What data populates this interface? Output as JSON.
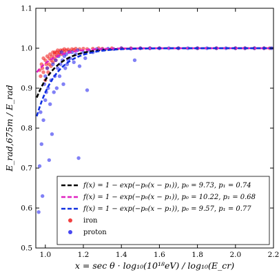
{
  "chart_data": {
    "type": "scatter",
    "xlabel": "x = sec θ · log₁₀(10¹⁸eV) / log₁₀(E_cr)",
    "ylabel": "E_rad,675m / E_rad",
    "xlim": [
      0.95,
      2.2
    ],
    "ylim": [
      0.5,
      1.1
    ],
    "x_ticks": [
      "1.0",
      "1.2",
      "1.4",
      "1.6",
      "1.8",
      "2.0",
      "2.2"
    ],
    "y_ticks": [
      "0.5",
      "0.6",
      "0.7",
      "0.8",
      "0.9",
      "1.0",
      "1.1"
    ],
    "grid": false,
    "legend_position": "lower-right",
    "fit_lines": [
      {
        "label": "f(x) = 1 − exp(−p₀(x − p₁)), p₀ = 9.73, p₁ = 0.74",
        "p0": 9.73,
        "p1": 0.74,
        "color": "#000000"
      },
      {
        "label": "f(x) = 1 − exp(−p₀(x − p₁)), p₀ = 10.22, p₁ = 0.68",
        "p0": 10.22,
        "p1": 0.68,
        "color": "#e020c0"
      },
      {
        "label": "f(x) = 1 − exp(−p₀(x − p₁)), p₀ = 9.57, p₁ = 0.77",
        "p0": 9.57,
        "p1": 0.77,
        "color": "#1030e0"
      }
    ],
    "series": [
      {
        "name": "iron",
        "color": "#ee1111",
        "points": [
          [
            0.97,
            0.945
          ],
          [
            0.975,
            0.93
          ],
          [
            0.98,
            0.96
          ],
          [
            0.985,
            0.95
          ],
          [
            0.99,
            0.975
          ],
          [
            0.99,
            0.94
          ],
          [
            1.0,
            0.97
          ],
          [
            1.0,
            0.92
          ],
          [
            1.005,
            0.96
          ],
          [
            1.01,
            0.98
          ],
          [
            1.01,
            0.95
          ],
          [
            1.015,
            0.94
          ],
          [
            1.02,
            0.975
          ],
          [
            1.02,
            0.96
          ],
          [
            1.025,
            0.985
          ],
          [
            1.03,
            0.97
          ],
          [
            1.03,
            0.955
          ],
          [
            1.035,
            0.98
          ],
          [
            1.04,
            0.99
          ],
          [
            1.04,
            0.965
          ],
          [
            1.045,
            0.975
          ],
          [
            1.05,
            0.985
          ],
          [
            1.05,
            0.99
          ],
          [
            1.055,
            0.97
          ],
          [
            1.06,
            0.99
          ],
          [
            1.06,
            0.98
          ],
          [
            1.065,
            0.995
          ],
          [
            1.07,
            0.985
          ],
          [
            1.075,
            0.99
          ],
          [
            1.08,
            0.995
          ],
          [
            1.085,
            0.985
          ],
          [
            1.09,
            0.995
          ],
          [
            1.1,
            0.99
          ],
          [
            1.1,
            0.998
          ],
          [
            1.11,
            0.995
          ],
          [
            1.12,
            0.997
          ],
          [
            1.13,
            0.993
          ],
          [
            1.14,
            0.998
          ],
          [
            1.15,
            0.996
          ],
          [
            1.16,
            0.999
          ],
          [
            1.18,
            0.998
          ],
          [
            1.2,
            0.999
          ],
          [
            1.22,
            0.998
          ],
          [
            1.25,
            0.999
          ],
          [
            1.28,
            1.0
          ],
          [
            1.3,
            0.999
          ],
          [
            1.35,
            1.0
          ],
          [
            1.4,
            1.0
          ],
          [
            1.45,
            1.0
          ],
          [
            1.5,
            1.0
          ],
          [
            1.55,
            1.0
          ],
          [
            1.6,
            1.0
          ],
          [
            1.7,
            1.0
          ],
          [
            1.8,
            1.0
          ],
          [
            1.9,
            1.0
          ],
          [
            2.0,
            1.0
          ],
          [
            2.05,
            1.0
          ],
          [
            2.1,
            1.0
          ],
          [
            2.15,
            1.0
          ],
          [
            2.18,
            1.0
          ]
        ]
      },
      {
        "name": "proton",
        "color": "#1a1aee",
        "points": [
          [
            0.965,
            0.59
          ],
          [
            0.97,
            0.705
          ],
          [
            0.975,
            0.84
          ],
          [
            0.98,
            0.76
          ],
          [
            0.985,
            0.63
          ],
          [
            0.99,
            0.82
          ],
          [
            0.995,
            0.91
          ],
          [
            1.0,
            0.87
          ],
          [
            1.0,
            0.93
          ],
          [
            1.005,
            0.89
          ],
          [
            1.01,
            0.95
          ],
          [
            1.015,
            0.9
          ],
          [
            1.02,
            0.72
          ],
          [
            1.025,
            0.86
          ],
          [
            1.03,
            0.92
          ],
          [
            1.035,
            0.785
          ],
          [
            1.04,
            0.96
          ],
          [
            1.045,
            0.89
          ],
          [
            1.05,
            0.93
          ],
          [
            1.055,
            0.97
          ],
          [
            1.06,
            0.9
          ],
          [
            1.065,
            0.95
          ],
          [
            1.07,
            0.98
          ],
          [
            1.075,
            0.93
          ],
          [
            1.08,
            0.96
          ],
          [
            1.085,
            0.99
          ],
          [
            1.09,
            0.97
          ],
          [
            1.095,
            0.91
          ],
          [
            1.1,
            0.98
          ],
          [
            1.105,
            0.95
          ],
          [
            1.11,
            0.985
          ],
          [
            1.115,
            0.96
          ],
          [
            1.12,
            0.97
          ],
          [
            1.125,
            0.99
          ],
          [
            1.13,
            0.975
          ],
          [
            1.14,
            0.99
          ],
          [
            1.15,
            0.965
          ],
          [
            1.16,
            0.985
          ],
          [
            1.17,
            0.995
          ],
          [
            1.175,
            0.725
          ],
          [
            1.18,
            0.955
          ],
          [
            1.2,
            0.99
          ],
          [
            1.21,
            0.975
          ],
          [
            1.22,
            0.895
          ],
          [
            1.23,
            0.995
          ],
          [
            1.25,
            0.99
          ],
          [
            1.27,
            0.998
          ],
          [
            1.3,
            0.997
          ],
          [
            1.33,
            0.999
          ],
          [
            1.36,
            0.998
          ],
          [
            1.4,
            1.0
          ],
          [
            1.45,
            0.999
          ],
          [
            1.47,
            0.97
          ],
          [
            1.5,
            1.0
          ],
          [
            1.55,
            1.0
          ],
          [
            1.6,
            1.0
          ],
          [
            1.65,
            1.0
          ],
          [
            1.7,
            1.0
          ],
          [
            1.75,
            1.0
          ],
          [
            1.8,
            1.0
          ],
          [
            1.85,
            1.0
          ],
          [
            1.9,
            1.0
          ],
          [
            1.95,
            1.0
          ],
          [
            2.0,
            1.0
          ],
          [
            2.05,
            1.0
          ],
          [
            2.1,
            1.0
          ],
          [
            2.15,
            1.0
          ],
          [
            2.19,
            1.0
          ]
        ]
      }
    ]
  }
}
